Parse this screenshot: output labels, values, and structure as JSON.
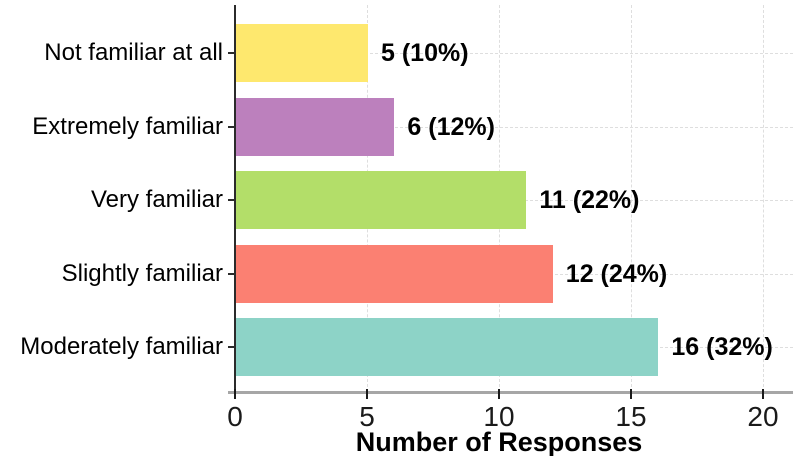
{
  "chart_data": {
    "type": "bar",
    "orientation": "horizontal",
    "title": "",
    "xlabel": "Number of Responses",
    "ylabel": "",
    "xlim": [
      0,
      20
    ],
    "xticks": [
      "0",
      "5",
      "10",
      "15",
      "20"
    ],
    "xtick_values": [
      0,
      5,
      10,
      15,
      20
    ],
    "grid": "dashed major gridlines, both axes",
    "legend": "none",
    "categories": [
      "Not familiar at all",
      "Extremely familiar",
      "Very familiar",
      "Slightly familiar",
      "Moderately familiar"
    ],
    "values": [
      5,
      6,
      11,
      12,
      16
    ],
    "percentages": [
      10,
      12,
      22,
      24,
      32
    ],
    "value_labels": [
      "5 (10%)",
      "6 (12%)",
      "11 (22%)",
      "12 (24%)",
      "16 (32%)"
    ],
    "bar_colors": [
      "#FEE86E",
      "#BC80BD",
      "#B3DE69",
      "#FB8072",
      "#8DD3C7"
    ],
    "style_colors": {
      "y_axis_line": "#2b2b2b",
      "x_axis_line": "#a6a6a6",
      "gridline": "#dedede",
      "text": "#000000"
    }
  }
}
